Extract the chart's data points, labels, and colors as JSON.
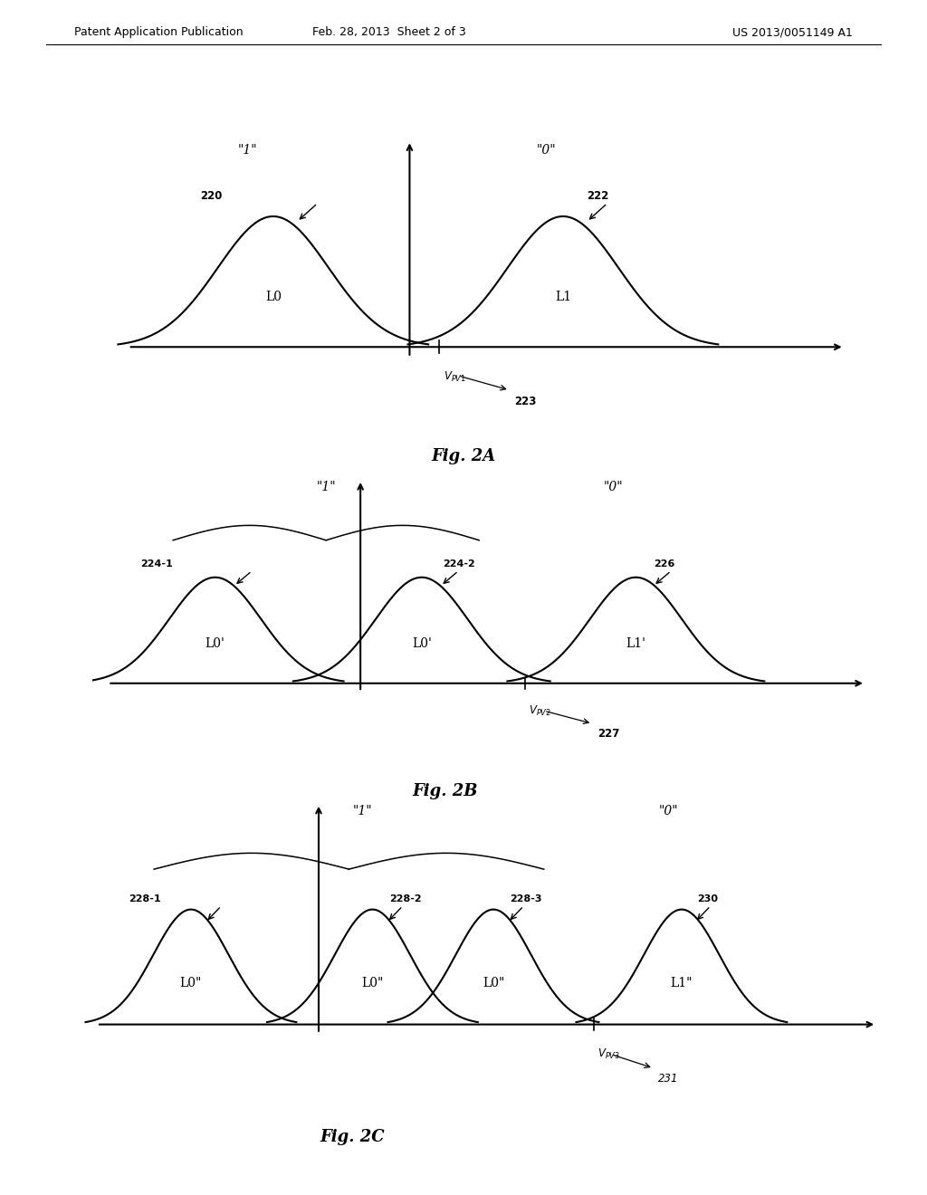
{
  "bg_color": "#ffffff",
  "header_left": "Patent Application Publication",
  "header_mid": "Feb. 28, 2013  Sheet 2 of 3",
  "header_right": "US 2013/0051149 A1"
}
